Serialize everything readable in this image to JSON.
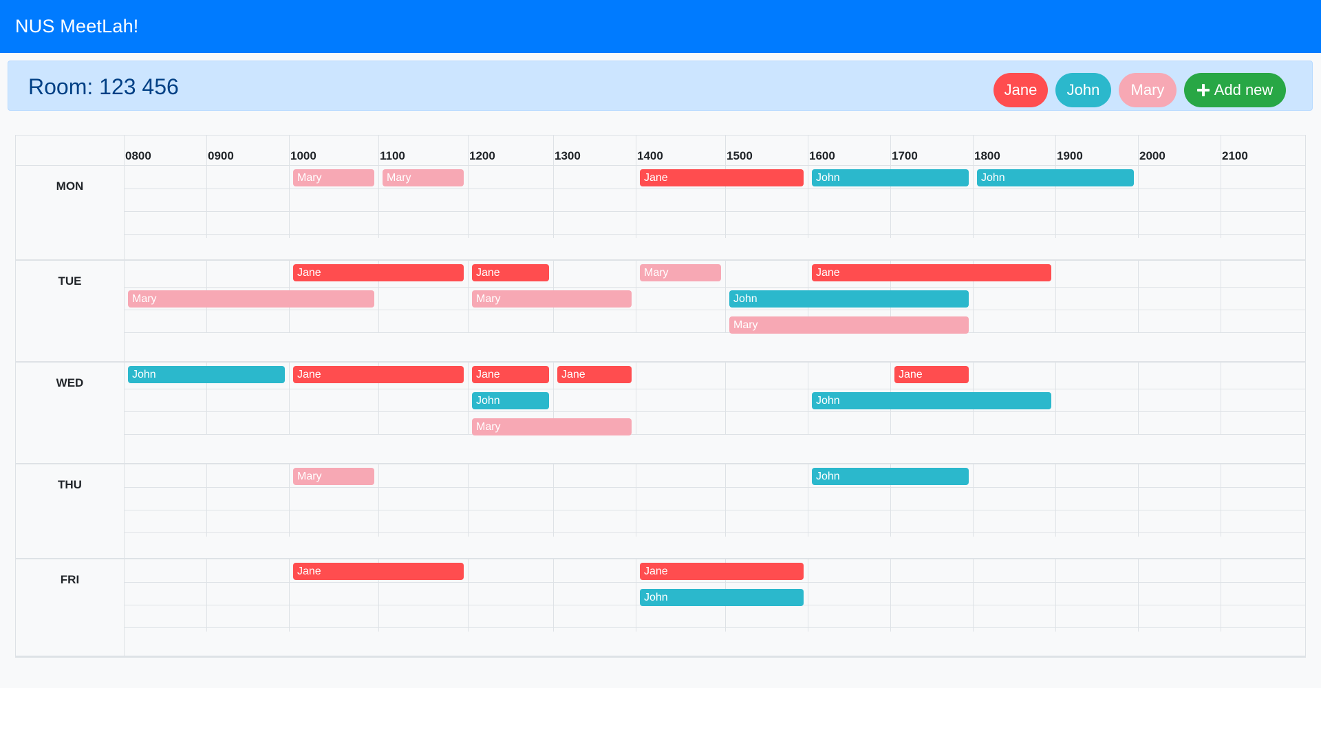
{
  "app": {
    "title": "NUS MeetLah!"
  },
  "room": {
    "title": "Room: 123 456"
  },
  "colors": {
    "navbar": "#007bff",
    "Jane": "#ff4d4f",
    "John": "#2bb8cc",
    "Mary": "#f7a8b4",
    "add": "#28a745"
  },
  "members": [
    {
      "name": "Jane",
      "color": "#ff4d4f"
    },
    {
      "name": "John",
      "color": "#2bb8cc"
    },
    {
      "name": "Mary",
      "color": "#f7a8b4"
    }
  ],
  "add_button": {
    "label": "Add new",
    "icon": "plus-icon"
  },
  "hours": [
    "0800",
    "0900",
    "1000",
    "1100",
    "1200",
    "1300",
    "1400",
    "1500",
    "1600",
    "1700",
    "1800",
    "1900",
    "2000",
    "2100"
  ],
  "days": [
    {
      "label": "MON",
      "rows": [
        [
          {
            "name": "Mary",
            "start": "1000",
            "end": "1100"
          },
          {
            "name": "Mary",
            "start": "1100",
            "end": "1200"
          },
          {
            "name": "Jane",
            "start": "1400",
            "end": "1600"
          },
          {
            "name": "John",
            "start": "1600",
            "end": "1800"
          },
          {
            "name": "John",
            "start": "1800",
            "end": "2000"
          }
        ]
      ]
    },
    {
      "label": "TUE",
      "rows": [
        [
          {
            "name": "Jane",
            "start": "1000",
            "end": "1200"
          },
          {
            "name": "Jane",
            "start": "1200",
            "end": "1300"
          },
          {
            "name": "Mary",
            "start": "1400",
            "end": "1500"
          },
          {
            "name": "Jane",
            "start": "1600",
            "end": "1900"
          }
        ],
        [
          {
            "name": "Mary",
            "start": "0800",
            "end": "1100"
          },
          {
            "name": "Mary",
            "start": "1200",
            "end": "1400"
          },
          {
            "name": "John",
            "start": "1500",
            "end": "1800"
          }
        ],
        [
          {
            "name": "Mary",
            "start": "1500",
            "end": "1800"
          }
        ]
      ]
    },
    {
      "label": "WED",
      "rows": [
        [
          {
            "name": "John",
            "start": "0800",
            "end": "1000"
          },
          {
            "name": "Jane",
            "start": "1000",
            "end": "1200"
          },
          {
            "name": "Jane",
            "start": "1200",
            "end": "1300"
          },
          {
            "name": "Jane",
            "start": "1300",
            "end": "1400"
          },
          {
            "name": "Jane",
            "start": "1700",
            "end": "1800"
          }
        ],
        [
          {
            "name": "John",
            "start": "1200",
            "end": "1300"
          },
          {
            "name": "John",
            "start": "1600",
            "end": "1900"
          }
        ],
        [
          {
            "name": "Mary",
            "start": "1200",
            "end": "1400"
          }
        ]
      ]
    },
    {
      "label": "THU",
      "rows": [
        [
          {
            "name": "Mary",
            "start": "1000",
            "end": "1100"
          },
          {
            "name": "John",
            "start": "1600",
            "end": "1800"
          }
        ]
      ]
    },
    {
      "label": "FRI",
      "rows": [
        [
          {
            "name": "Jane",
            "start": "1000",
            "end": "1200"
          },
          {
            "name": "Jane",
            "start": "1400",
            "end": "1600"
          }
        ],
        [
          {
            "name": "John",
            "start": "1400",
            "end": "1600"
          }
        ]
      ]
    }
  ]
}
